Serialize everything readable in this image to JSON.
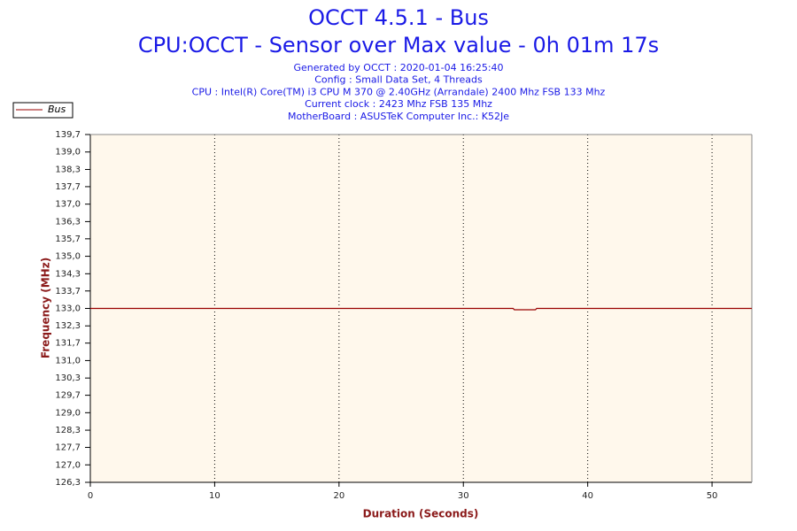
{
  "chart_data": {
    "type": "line",
    "title": "OCCT 4.5.1 - Bus",
    "subtitle": "CPU:OCCT - Sensor over Max value - 0h 01m 17s",
    "info": [
      "Generated by OCCT : 2020-01-04 16:25:40",
      "Config : Small Data Set, 4 Threads",
      "CPU : Intel(R) Core(TM) i3 CPU M 370 @ 2.40GHz (Arrandale) 2400 Mhz FSB 133 Mhz",
      "Current clock : 2423 Mhz FSB 135 Mhz",
      "MotherBoard : ASUSTeK Computer Inc.: K52Je"
    ],
    "x_label": "Duration (Seconds)",
    "y_label": "Frequency (MHz)",
    "x": [
      0,
      34,
      34.1,
      35.8,
      35.9,
      53.2
    ],
    "series": [
      {
        "name": "Bus",
        "color": "#990000",
        "values": [
          133,
          133,
          132.95,
          132.95,
          133,
          133
        ]
      }
    ],
    "xlim": [
      0,
      53.2
    ],
    "xticks": [
      0,
      10,
      20,
      30,
      40,
      50
    ],
    "ylim": [
      126.33,
      139.67
    ],
    "yticks": [
      {
        "value": 126.33,
        "label": "126,3"
      },
      {
        "value": 127,
        "label": "127,0"
      },
      {
        "value": 127.67,
        "label": "127,7"
      },
      {
        "value": 128.33,
        "label": "128,3"
      },
      {
        "value": 129,
        "label": "129,0"
      },
      {
        "value": 129.67,
        "label": "129,7"
      },
      {
        "value": 130.33,
        "label": "130,3"
      },
      {
        "value": 131,
        "label": "131,0"
      },
      {
        "value": 131.67,
        "label": "131,7"
      },
      {
        "value": 132.33,
        "label": "132,3"
      },
      {
        "value": 133,
        "label": "133,0"
      },
      {
        "value": 133.67,
        "label": "133,7"
      },
      {
        "value": 134.33,
        "label": "134,3"
      },
      {
        "value": 135,
        "label": "135,0"
      },
      {
        "value": 135.67,
        "label": "135,7"
      },
      {
        "value": 136.33,
        "label": "136,3"
      },
      {
        "value": 137,
        "label": "137,0"
      },
      {
        "value": 137.67,
        "label": "137,7"
      },
      {
        "value": 138.33,
        "label": "138,3"
      },
      {
        "value": 139,
        "label": "139,0"
      },
      {
        "value": 139.67,
        "label": "139,7"
      }
    ],
    "grid": "x",
    "legend": "top-left"
  }
}
